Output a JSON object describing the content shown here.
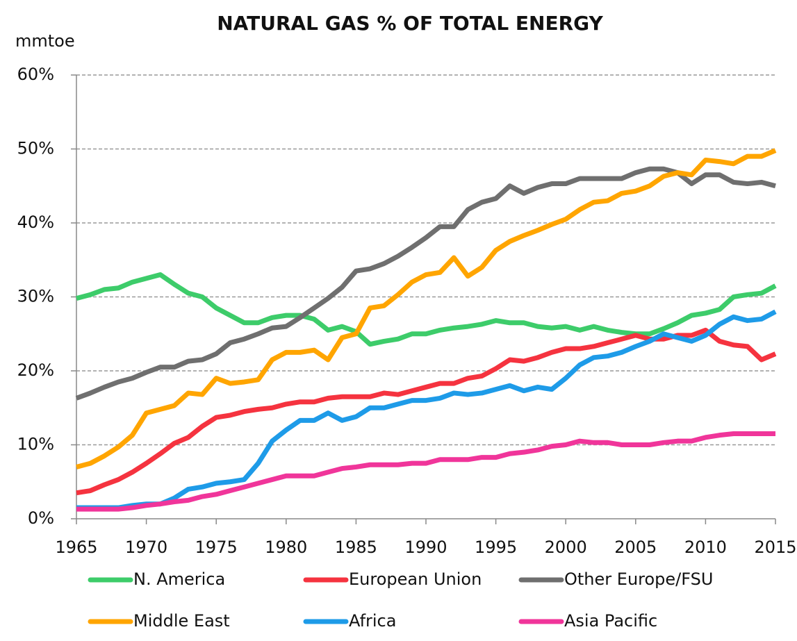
{
  "chart_data": {
    "type": "line",
    "title": "NATURAL GAS % OF TOTAL ENERGY",
    "y_label": "mmtoe",
    "x": [
      1965,
      1966,
      1967,
      1968,
      1969,
      1970,
      1971,
      1972,
      1973,
      1974,
      1975,
      1976,
      1977,
      1978,
      1979,
      1980,
      1981,
      1982,
      1983,
      1984,
      1985,
      1986,
      1987,
      1988,
      1989,
      1990,
      1991,
      1992,
      1993,
      1994,
      1995,
      1996,
      1997,
      1998,
      1999,
      2000,
      2001,
      2002,
      2003,
      2004,
      2005,
      2006,
      2007,
      2008,
      2009,
      2010,
      2011,
      2012,
      2013,
      2014,
      2015
    ],
    "xlim": [
      1965,
      2015
    ],
    "xticks": [
      1965,
      1970,
      1975,
      1980,
      1985,
      1990,
      1995,
      2000,
      2005,
      2010,
      2015
    ],
    "ylim": [
      0,
      60
    ],
    "yticks": [
      {
        "value": 0,
        "label": "0%"
      },
      {
        "value": 10,
        "label": "10%"
      },
      {
        "value": 20,
        "label": "20%"
      },
      {
        "value": 30,
        "label": "30%"
      },
      {
        "value": 40,
        "label": "40%"
      },
      {
        "value": 50,
        "label": "50%"
      },
      {
        "value": 60,
        "label": "60%"
      }
    ],
    "grid": true,
    "series": [
      {
        "name": "N. America",
        "color": "#3dcc6a",
        "values": [
          29.8,
          30.3,
          31.0,
          31.2,
          32.0,
          32.5,
          33.0,
          31.7,
          30.5,
          30.0,
          28.5,
          27.5,
          26.5,
          26.5,
          27.2,
          27.5,
          27.5,
          27.0,
          25.5,
          26.0,
          25.3,
          23.6,
          24.0,
          24.3,
          25.0,
          25.0,
          25.5,
          25.8,
          26.0,
          26.3,
          26.8,
          26.5,
          26.5,
          26.0,
          25.8,
          26.0,
          25.5,
          26.0,
          25.5,
          25.2,
          25.0,
          25.0,
          25.7,
          26.5,
          27.5,
          27.8,
          28.3,
          30.0,
          30.3,
          30.5,
          31.5
        ]
      },
      {
        "name": "European Union",
        "color": "#f5333f",
        "values": [
          3.5,
          3.8,
          4.6,
          5.3,
          6.3,
          7.5,
          8.8,
          10.2,
          11.0,
          12.5,
          13.7,
          14.0,
          14.5,
          14.8,
          15.0,
          15.5,
          15.8,
          15.8,
          16.3,
          16.5,
          16.5,
          16.5,
          17.0,
          16.8,
          17.3,
          17.8,
          18.3,
          18.3,
          19.0,
          19.3,
          20.3,
          21.5,
          21.3,
          21.8,
          22.5,
          23.0,
          23.0,
          23.3,
          23.8,
          24.3,
          24.8,
          24.3,
          24.3,
          24.8,
          24.8,
          25.5,
          24.0,
          23.5,
          23.3,
          21.5,
          22.3
        ]
      },
      {
        "name": "Other Europe/FSU",
        "color": "#6f6f6f",
        "values": [
          16.3,
          17.0,
          17.8,
          18.5,
          19.0,
          19.8,
          20.5,
          20.5,
          21.3,
          21.5,
          22.3,
          23.8,
          24.3,
          25.0,
          25.8,
          26.0,
          27.2,
          28.5,
          29.8,
          31.3,
          33.5,
          33.8,
          34.5,
          35.5,
          36.7,
          38.0,
          39.5,
          39.5,
          41.8,
          42.8,
          43.3,
          45.0,
          44.0,
          44.8,
          45.3,
          45.3,
          46.0,
          46.0,
          46.0,
          46.0,
          46.8,
          47.3,
          47.3,
          46.8,
          45.3,
          46.5,
          46.5,
          45.5,
          45.3,
          45.5,
          45.0
        ]
      },
      {
        "name": "Middle East",
        "color": "#ffa500",
        "values": [
          7.0,
          7.5,
          8.5,
          9.7,
          11.3,
          14.3,
          14.8,
          15.3,
          17.0,
          16.8,
          19.0,
          18.3,
          18.5,
          18.8,
          21.5,
          22.5,
          22.5,
          22.8,
          21.5,
          24.5,
          25.0,
          28.5,
          28.8,
          30.3,
          32.0,
          33.0,
          33.3,
          35.3,
          32.8,
          34.0,
          36.3,
          37.5,
          38.3,
          39.0,
          39.8,
          40.5,
          41.8,
          42.8,
          43.0,
          44.0,
          44.3,
          45.0,
          46.3,
          46.8,
          46.5,
          48.5,
          48.3,
          48.0,
          49.0,
          49.0,
          49.8
        ]
      },
      {
        "name": "Africa",
        "color": "#1e9be8",
        "values": [
          1.5,
          1.5,
          1.5,
          1.5,
          1.8,
          2.0,
          2.0,
          2.8,
          4.0,
          4.3,
          4.8,
          5.0,
          5.3,
          7.5,
          10.5,
          12.0,
          13.3,
          13.3,
          14.3,
          13.3,
          13.8,
          15.0,
          15.0,
          15.5,
          16.0,
          16.0,
          16.3,
          17.0,
          16.8,
          17.0,
          17.5,
          18.0,
          17.3,
          17.8,
          17.5,
          19.0,
          20.8,
          21.8,
          22.0,
          22.5,
          23.3,
          24.0,
          25.0,
          24.5,
          24.0,
          24.8,
          26.3,
          27.3,
          26.8,
          27.0,
          28.0
        ]
      },
      {
        "name": "Asia Pacific",
        "color": "#f0359a",
        "values": [
          1.3,
          1.3,
          1.3,
          1.3,
          1.5,
          1.8,
          2.0,
          2.3,
          2.5,
          3.0,
          3.3,
          3.8,
          4.3,
          4.8,
          5.3,
          5.8,
          5.8,
          5.8,
          6.3,
          6.8,
          7.0,
          7.3,
          7.3,
          7.3,
          7.5,
          7.5,
          8.0,
          8.0,
          8.0,
          8.3,
          8.3,
          8.8,
          9.0,
          9.3,
          9.8,
          10.0,
          10.5,
          10.3,
          10.3,
          10.0,
          10.0,
          10.0,
          10.3,
          10.5,
          10.5,
          11.0,
          11.3,
          11.5,
          11.5,
          11.5,
          11.5
        ]
      }
    ]
  }
}
